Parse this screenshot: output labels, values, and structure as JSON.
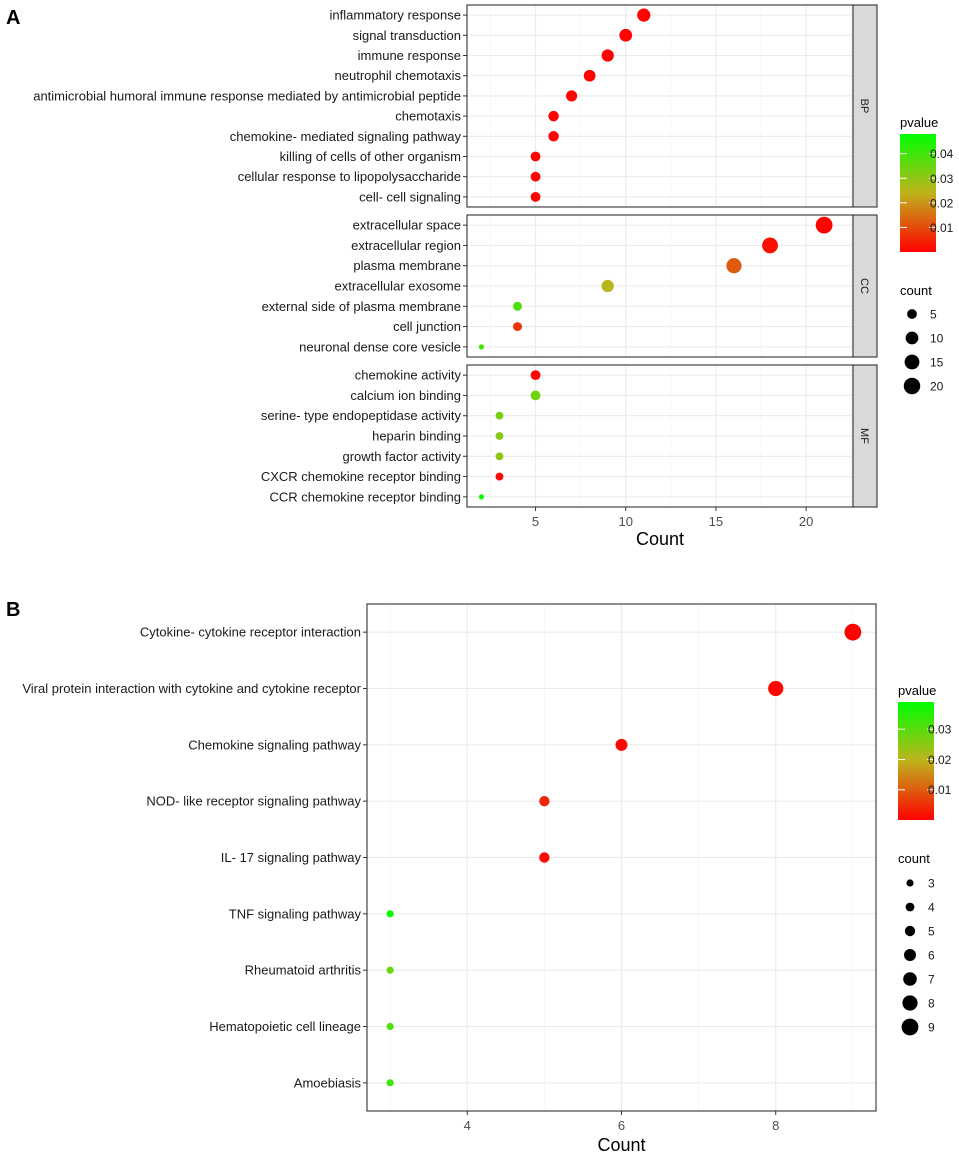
{
  "panels": {
    "A": {
      "letter": "A"
    },
    "B": {
      "letter": "B"
    }
  },
  "chart_data": [
    {
      "type": "scatter",
      "panel": "A",
      "title": "",
      "xlabel": "Count",
      "ylabel": "",
      "xlim": [
        1.2,
        22.6
      ],
      "xticks": [
        5,
        10,
        15,
        20
      ],
      "grid": true,
      "facets": [
        {
          "label": "BP",
          "categories": [
            "inflammatory response",
            "signal transduction",
            "immune response",
            "neutrophil chemotaxis",
            "antimicrobial humoral immune response mediated by antimicrobial peptide",
            "chemotaxis",
            "chemokine- mediated signaling pathway",
            "killing of cells of other organism",
            "cellular response to lipopolysaccharide",
            "cell- cell signaling"
          ],
          "counts": [
            11,
            10,
            9,
            8,
            7,
            6,
            6,
            5,
            5,
            5
          ],
          "pvalues": [
            0.0005,
            0.0005,
            0.0005,
            0.0005,
            0.0005,
            0.0005,
            0.0005,
            0.0005,
            0.0005,
            0.0005
          ]
        },
        {
          "label": "CC",
          "categories": [
            "extracellular space",
            "extracellular region",
            "plasma membrane",
            "extracellular exosome",
            "external side of plasma membrane",
            "cell junction",
            "neuronal dense core vesicle"
          ],
          "counts": [
            21,
            18,
            16,
            9,
            4,
            4,
            2
          ],
          "pvalues": [
            0.0005,
            0.002,
            0.012,
            0.025,
            0.038,
            0.007,
            0.04
          ]
        },
        {
          "label": "MF",
          "categories": [
            "chemokine activity",
            "calcium ion binding",
            "serine- type endopeptidase activity",
            "heparin binding",
            "growth factor activity",
            "CXCR chemokine receptor binding",
            "CCR chemokine receptor binding"
          ],
          "counts": [
            5,
            5,
            3,
            3,
            3,
            3,
            2
          ],
          "pvalues": [
            0.0005,
            0.034,
            0.033,
            0.031,
            0.03,
            0.001,
            0.047
          ]
        }
      ],
      "colorbar": {
        "title": "pvalue",
        "min": 0,
        "max": 0.048,
        "ticks": [
          0.04,
          0.03,
          0.02,
          0.01
        ],
        "tick_labels": [
          "0.04",
          "0.03",
          "0.02",
          "0.01"
        ],
        "low_color": "#ff0000",
        "mid_color": "#bfb31c",
        "high_color": "#00ff00"
      },
      "size_legend": {
        "title": "count",
        "values": [
          5,
          10,
          15,
          20
        ],
        "labels": [
          "5",
          "10",
          "15",
          "20"
        ]
      }
    },
    {
      "type": "scatter",
      "panel": "B",
      "title": "",
      "xlabel": "Count",
      "ylabel": "",
      "xlim": [
        2.7,
        9.3
      ],
      "xticks": [
        4,
        6,
        8
      ],
      "grid": true,
      "categories": [
        "Cytokine- cytokine receptor interaction",
        "Viral protein interaction with cytokine and cytokine receptor",
        "Chemokine signaling pathway",
        "NOD- like receptor signaling pathway",
        "IL- 17 signaling pathway",
        "TNF signaling pathway",
        "Rheumatoid arthritis",
        "Hematopoietic cell lineage",
        "Amoebiasis"
      ],
      "counts": [
        9,
        8,
        6,
        5,
        5,
        3,
        3,
        3,
        3
      ],
      "pvalues": [
        0.0003,
        0.0004,
        0.0008,
        0.004,
        0.001,
        0.038,
        0.028,
        0.031,
        0.033
      ],
      "colorbar": {
        "title": "pvalue",
        "min": 0,
        "max": 0.039,
        "ticks": [
          0.03,
          0.02,
          0.01
        ],
        "tick_labels": [
          "0.03",
          "0.02",
          "0.01"
        ],
        "low_color": "#ff0000",
        "mid_color": "#bfb31c",
        "high_color": "#00ff00"
      },
      "size_legend": {
        "title": "count",
        "values": [
          3,
          4,
          5,
          6,
          7,
          8,
          9
        ],
        "labels": [
          "3",
          "4",
          "5",
          "6",
          "7",
          "8",
          "9"
        ]
      }
    }
  ]
}
